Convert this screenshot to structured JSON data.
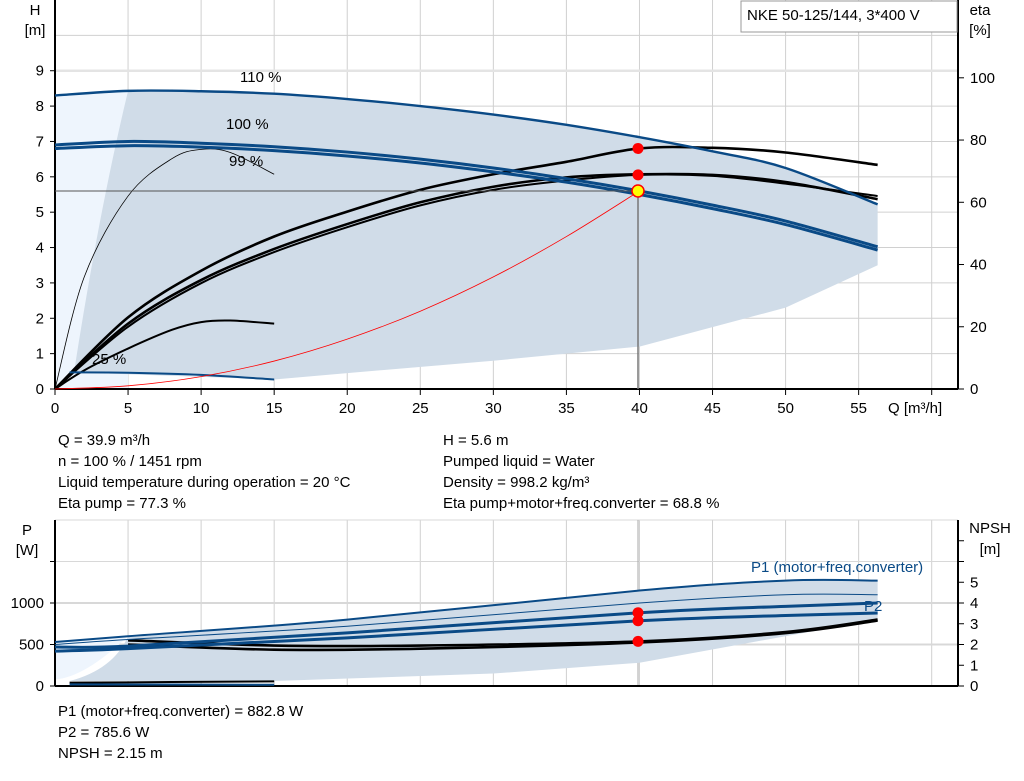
{
  "chart_data": [
    {
      "type": "line",
      "title": "NKE 50-125/144, 3*400 V",
      "xlabel": "Q [m³/h]",
      "ylabel": "H\n[m]",
      "ylabel_unit": "[m]",
      "ylabel_name": "H",
      "y2label_name": "eta",
      "y2label_unit": "[%]",
      "xticks": [
        0,
        5,
        10,
        15,
        20,
        25,
        30,
        35,
        40,
        45,
        50,
        55
      ],
      "yticks": [
        0,
        1,
        2,
        3,
        4,
        5,
        6,
        7,
        8,
        9
      ],
      "y2ticks": [
        0,
        20,
        40,
        60,
        80,
        100
      ],
      "xlim": [
        0,
        61.8
      ],
      "ylim": [
        0,
        11
      ],
      "y2lim": [
        0,
        125
      ],
      "grid": true,
      "curve_labels": [
        "110 %",
        "100 %",
        "99 %",
        "25 %"
      ],
      "head_series": [
        {
          "name": "110 %",
          "x": [
            0,
            5,
            10,
            15,
            20,
            25,
            30,
            35,
            40,
            45,
            50,
            56.3
          ],
          "y": [
            8.3,
            8.43,
            8.42,
            8.35,
            8.2,
            8.0,
            7.76,
            7.47,
            7.12,
            6.72,
            6.25,
            5.22
          ]
        },
        {
          "name": "100 %",
          "x": [
            0,
            5,
            10,
            15,
            20,
            25,
            30,
            35,
            40,
            45,
            50,
            56.3
          ],
          "y": [
            6.9,
            7.0,
            6.95,
            6.85,
            6.7,
            6.5,
            6.25,
            5.95,
            5.6,
            5.2,
            4.75,
            4.02
          ]
        },
        {
          "name": "99 %",
          "x": [
            0,
            5,
            10,
            15,
            20,
            25,
            30,
            35,
            40,
            45,
            50,
            56.3
          ],
          "y": [
            6.8,
            6.88,
            6.84,
            6.74,
            6.59,
            6.39,
            6.14,
            5.85,
            5.5,
            5.1,
            4.65,
            3.93
          ]
        },
        {
          "name": "25 %",
          "x": [
            1,
            5,
            10,
            15
          ],
          "y": [
            0.47,
            0.46,
            0.4,
            0.27
          ]
        }
      ],
      "eta_series": [
        {
          "x": [
            0,
            5,
            10,
            15,
            20,
            25,
            30,
            35,
            40,
            45,
            50,
            56.3
          ],
          "y": [
            0,
            23,
            38,
            49,
            57,
            64,
            69,
            73,
            77.3,
            77.5,
            76,
            72
          ]
        },
        {
          "x": [
            0,
            5,
            10,
            15,
            20,
            25,
            30,
            35,
            40,
            45,
            50,
            56.3
          ],
          "y": [
            0,
            21,
            35,
            45,
            53,
            60,
            65,
            68,
            69,
            68.8,
            66.5,
            61
          ]
        },
        {
          "x": [
            0,
            5,
            10,
            15,
            20,
            25,
            30,
            35,
            40,
            45,
            50,
            56.3
          ],
          "y": [
            0,
            20,
            34,
            44,
            52,
            59,
            64,
            67,
            68.8,
            68.5,
            66,
            62
          ]
        },
        {
          "x": [
            0,
            2,
            5,
            8,
            10,
            12,
            15
          ],
          "y": [
            0,
            36,
            62,
            74,
            77,
            76,
            69
          ]
        },
        {
          "x": [
            0,
            2,
            5,
            8,
            10,
            12,
            15
          ],
          "y": [
            0,
            6,
            13,
            19,
            21.5,
            22,
            21
          ]
        }
      ],
      "system_curve": {
        "x": [
          0,
          5,
          10,
          15,
          20,
          25,
          30,
          35,
          40
        ],
        "y": [
          0,
          0.09,
          0.35,
          0.79,
          1.41,
          2.2,
          3.17,
          4.31,
          5.6
        ]
      },
      "duty_point": {
        "Q": 39.9,
        "H": 5.6
      },
      "eta_points": [
        77.3,
        68.8
      ],
      "colors": {
        "curve": "#0a4a86",
        "envelope": "#d0dce8",
        "envelope_light": "#eef5fd",
        "duty": "#ffff00",
        "point": "#ff0000",
        "system": "#ff0000"
      }
    },
    {
      "type": "line",
      "xlim": [
        0,
        61.8
      ],
      "ylabel_name": "P",
      "ylabel_unit": "[W]",
      "y2label_name": "NPSH",
      "y2label_unit": "[m]",
      "yticks": [
        0,
        500,
        1000
      ],
      "y2ticks": [
        0,
        1,
        2,
        3,
        4,
        5
      ],
      "ylim": [
        0,
        2000
      ],
      "y2lim": [
        0,
        8
      ],
      "grid": true,
      "legend_labels": [
        "P1 (motor+freq.converter)",
        "P2"
      ],
      "power_series": [
        {
          "name": "P1 (motor+freq.converter)",
          "x": [
            0,
            5,
            20,
            40,
            50,
            56.3
          ],
          "y": [
            530,
            600,
            800,
            1150,
            1270,
            1270
          ]
        },
        {
          "x": [
            0,
            5,
            20,
            40,
            50,
            56.3
          ],
          "y": [
            500,
            560,
            720,
            1000,
            1100,
            1100
          ]
        },
        {
          "x": [
            0,
            5,
            20,
            40,
            50,
            56.3
          ],
          "y": [
            470,
            480,
            640,
            882.8,
            960,
            1000
          ]
        },
        {
          "name": "P2",
          "x": [
            0,
            5,
            20,
            40,
            50,
            56.3
          ],
          "y": [
            420,
            450,
            580,
            785.6,
            850,
            880
          ]
        },
        {
          "x": [
            1,
            15
          ],
          "y": [
            40,
            55
          ]
        },
        {
          "x": [
            1,
            15
          ],
          "y": [
            20,
            15
          ]
        }
      ],
      "npsh_series": [
        {
          "x": [
            5,
            15,
            25,
            40,
            50,
            56.3
          ],
          "y": [
            2.2,
            1.95,
            1.95,
            2.15,
            2.6,
            3.2
          ]
        },
        {
          "x": [
            5,
            15,
            25,
            40,
            50,
            56.3
          ],
          "y": [
            2.0,
            1.75,
            1.8,
            2.1,
            2.55,
            3.15
          ]
        }
      ],
      "points": {
        "P1": 882.8,
        "P2": 785.6,
        "NPSH": 2.15
      }
    }
  ],
  "results": {
    "left": [
      "Q = 39.9 m³/h",
      "n = 100 % / 1451 rpm",
      "Liquid temperature during operation = 20 °C",
      "Eta pump = 77.3 %"
    ],
    "right": [
      "H = 5.6 m",
      "Pumped liquid = Water",
      "Density = 998.2 kg/m³",
      "Eta pump+motor+freq.converter = 68.8 %"
    ],
    "bottom": [
      "P1 (motor+freq.converter) = 882.8 W",
      "P2 = 785.6 W",
      "NPSH = 2.15 m"
    ]
  }
}
